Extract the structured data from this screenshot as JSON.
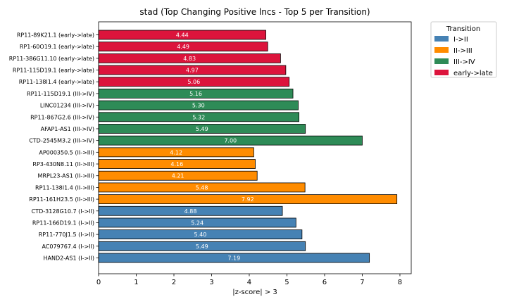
{
  "chart_data": {
    "type": "bar",
    "orientation": "horizontal",
    "title": "stad (Top Changing Positive lncs - Top 5 per Transition)",
    "xlabel": "|z-score| > 3",
    "ylabel": "",
    "xlim": [
      0,
      8.3
    ],
    "xticks": [
      0,
      1,
      2,
      3,
      4,
      5,
      6,
      7,
      8
    ],
    "grid": false,
    "legend": {
      "title": "Transition",
      "placement": "outside-top-right",
      "entries": [
        {
          "name": "I->II",
          "color": "#4682b4"
        },
        {
          "name": "II->III",
          "color": "#ff8c00"
        },
        {
          "name": "III->IV",
          "color": "#2e8b57"
        },
        {
          "name": "early->late",
          "color": "#dc143c"
        }
      ]
    },
    "bars": [
      {
        "category": "RP11-89K21.1 (early->late)",
        "value": 4.44,
        "label": "4.44",
        "group": "early->late"
      },
      {
        "category": "RP1-60O19.1 (early->late)",
        "value": 4.49,
        "label": "4.49",
        "group": "early->late"
      },
      {
        "category": "RP11-386G11.10 (early->late)",
        "value": 4.83,
        "label": "4.83",
        "group": "early->late"
      },
      {
        "category": "RP11-115D19.1 (early->late)",
        "value": 4.97,
        "label": "4.97",
        "group": "early->late"
      },
      {
        "category": "RP11-138I1.4 (early->late)",
        "value": 5.06,
        "label": "5.06",
        "group": "early->late"
      },
      {
        "category": "RP11-115D19.1 (III->IV)",
        "value": 5.16,
        "label": "5.16",
        "group": "III->IV"
      },
      {
        "category": "LINC01234 (III->IV)",
        "value": 5.3,
        "label": "5.30",
        "group": "III->IV"
      },
      {
        "category": "RP11-867G2.6 (III->IV)",
        "value": 5.32,
        "label": "5.32",
        "group": "III->IV"
      },
      {
        "category": "AFAP1-AS1 (III->IV)",
        "value": 5.49,
        "label": "5.49",
        "group": "III->IV"
      },
      {
        "category": "CTD-2545M3.2 (III->IV)",
        "value": 7.0,
        "label": "7.00",
        "group": "III->IV"
      },
      {
        "category": "AP000350.5 (II->III)",
        "value": 4.12,
        "label": "4.12",
        "group": "II->III"
      },
      {
        "category": "RP3-430N8.11 (II->III)",
        "value": 4.16,
        "label": "4.16",
        "group": "II->III"
      },
      {
        "category": "MRPL23-AS1 (II->III)",
        "value": 4.21,
        "label": "4.21",
        "group": "II->III"
      },
      {
        "category": "RP11-138I1.4 (II->III)",
        "value": 5.48,
        "label": "5.48",
        "group": "II->III"
      },
      {
        "category": "RP11-161H23.5 (II->III)",
        "value": 7.92,
        "label": "7.92",
        "group": "II->III"
      },
      {
        "category": "CTD-3128G10.7 (I->II)",
        "value": 4.88,
        "label": "4.88",
        "group": "I->II"
      },
      {
        "category": "RP11-166D19.1 (I->II)",
        "value": 5.24,
        "label": "5.24",
        "group": "I->II"
      },
      {
        "category": "RP11-770J1.5 (I->II)",
        "value": 5.4,
        "label": "5.40",
        "group": "I->II"
      },
      {
        "category": "AC079767.4 (I->II)",
        "value": 5.49,
        "label": "5.49",
        "group": "I->II"
      },
      {
        "category": "HAND2-AS1 (I->II)",
        "value": 7.19,
        "label": "7.19",
        "group": "I->II"
      }
    ]
  }
}
